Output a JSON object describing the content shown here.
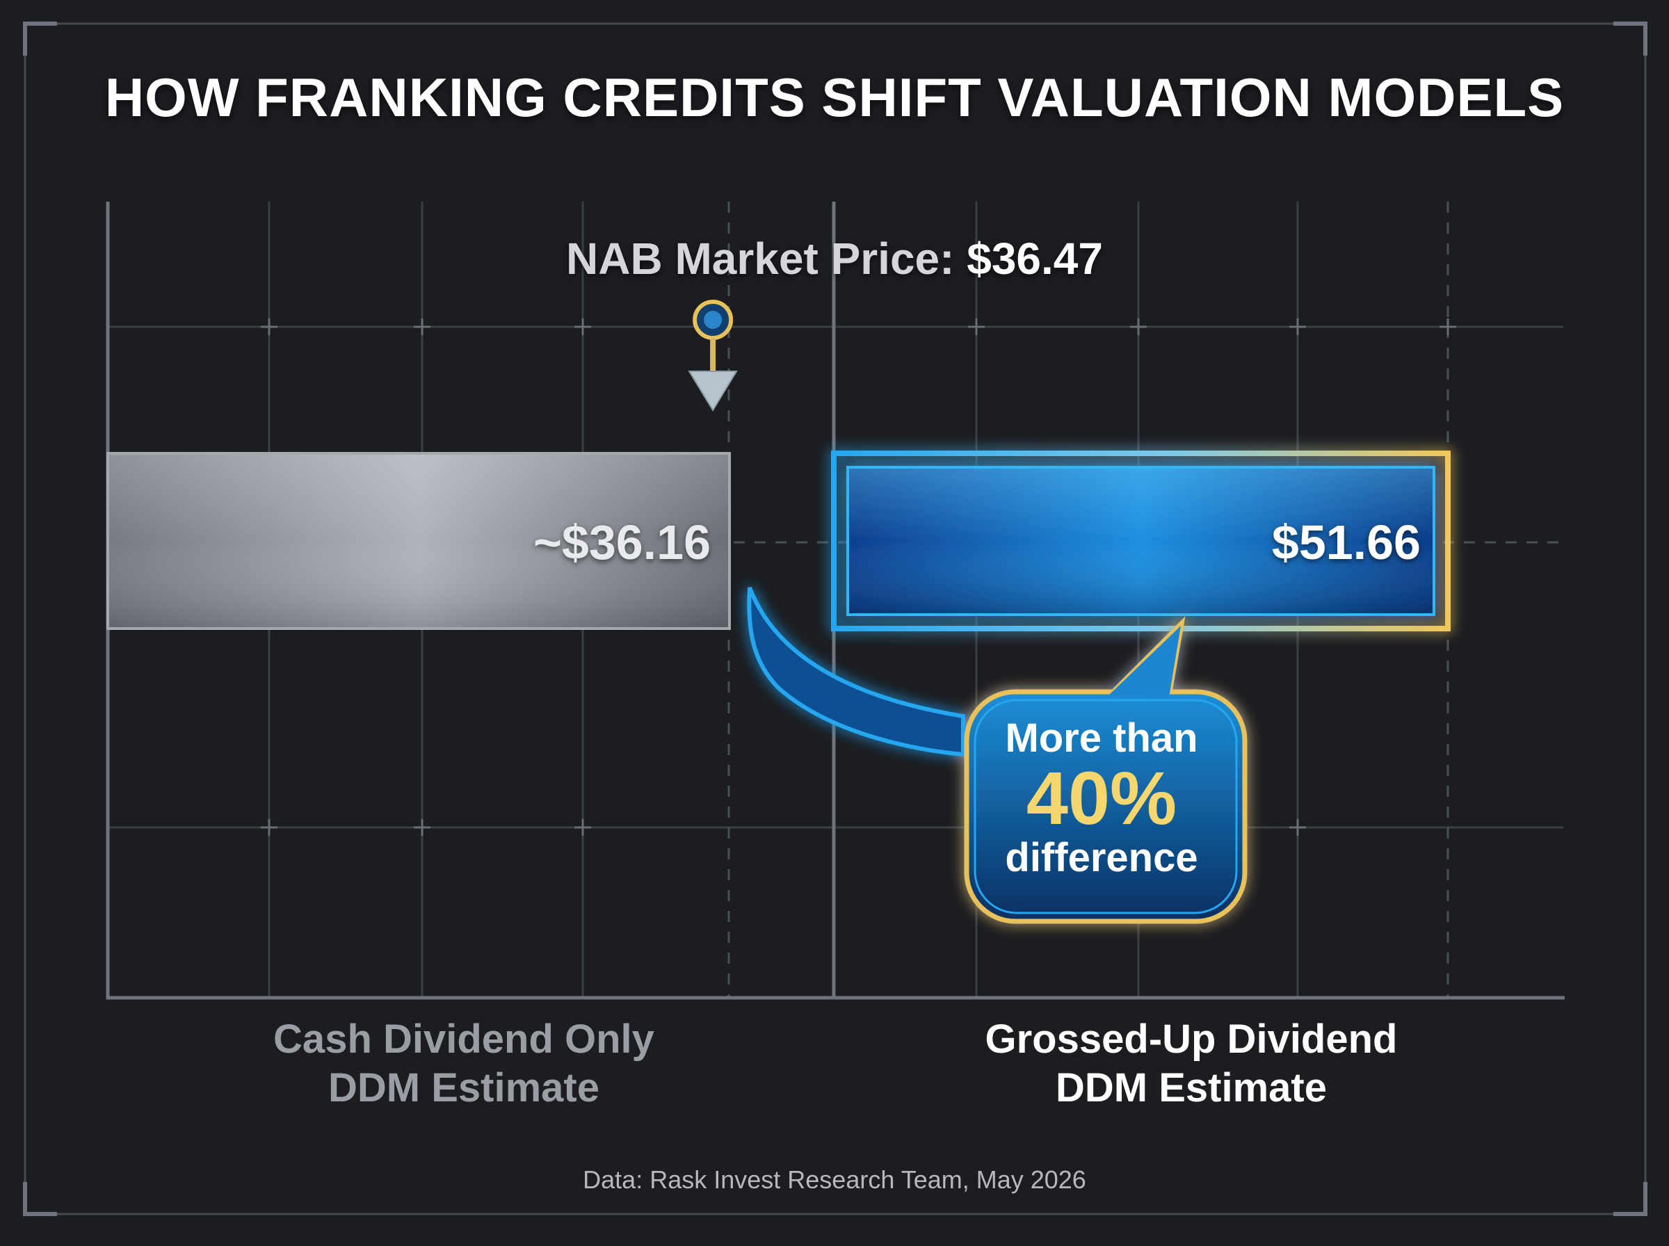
{
  "title": "HOW FRANKING CREDITS SHIFT VALUATION MODELS",
  "market_price": {
    "label": "NAB Market Price:",
    "value": "$36.47"
  },
  "callout": {
    "line1": "More than",
    "line2": "40%",
    "line3": "difference"
  },
  "source": "Data: Rask Invest Research Team, May 2026",
  "colors": {
    "background": "#1c1d21",
    "cash_bar": "#8d939b",
    "grossed_bar": "#1f8fe0",
    "accent_gold": "#e8c15a",
    "accent_blue": "#27a6ee"
  },
  "chart_data": {
    "type": "bar",
    "orientation": "horizontal",
    "categories": [
      "Cash Dividend Only DDM Estimate",
      "Grossed-Up Dividend DDM Estimate"
    ],
    "category_lines": [
      [
        "Cash Dividend Only",
        "DDM Estimate"
      ],
      [
        "Grossed-Up Dividend",
        "DDM Estimate"
      ]
    ],
    "values": [
      36.16,
      51.66
    ],
    "value_labels": [
      "~$36.16",
      "$51.66"
    ],
    "reference_line": {
      "label": "NAB Market Price",
      "value": 36.47
    },
    "annotation": "More than 40% difference",
    "grid": true
  }
}
